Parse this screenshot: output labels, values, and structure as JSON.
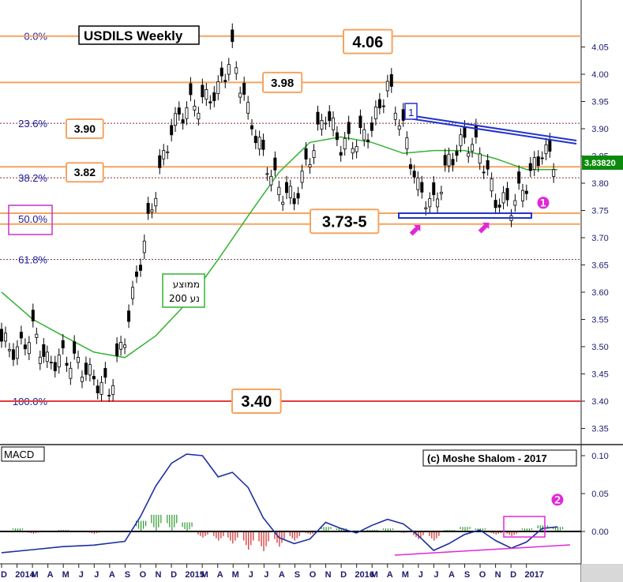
{
  "title": "USDILS Weekly",
  "credit": "(c) Moshe Shalom - 2017",
  "last_price": "3.83820",
  "colors": {
    "fib_line": "#f4a460",
    "fib_dashed": "#8b2c2c",
    "support_line": "#e33b3b",
    "ma200": "#33b233",
    "resistance": "#2233cc",
    "marker": "#e028d8",
    "macd_line": "#1c2fa0",
    "hist_pos": "#2e9a2e",
    "hist_neg": "#d42424",
    "price_tag_bg": "#0c8a0c"
  },
  "chart_data": [
    {
      "type": "candlestick",
      "title": "USDILS Weekly",
      "ylim": [
        3.33,
        4.1
      ],
      "y_ticks": [
        "4.05",
        "4.00",
        "3.95",
        "3.90",
        "3.85",
        "3.80",
        "3.75",
        "3.70",
        "3.65",
        "3.60",
        "3.55",
        "3.50",
        "3.45",
        "3.40",
        "3.35"
      ],
      "x_ticks": [
        "D",
        "2014",
        "M",
        "A",
        "M",
        "J",
        "J",
        "A",
        "S",
        "O",
        "N",
        "D",
        "2015",
        "M",
        "A",
        "M",
        "J",
        "J",
        "A",
        "S",
        "O",
        "N",
        "D",
        "2016",
        "M",
        "A",
        "M",
        "J",
        "J",
        "A",
        "S",
        "O",
        "N",
        "D",
        "2017"
      ],
      "x_range": [
        "2013-12",
        "2017-01"
      ],
      "fib_levels": [
        {
          "label": "0.0%",
          "value": 4.07
        },
        {
          "label": "23.6%",
          "value": 3.91
        },
        {
          "label": "38.2%",
          "value": 3.81
        },
        {
          "label": "50.0%",
          "value": 3.735
        },
        {
          "label": "61.8%",
          "value": 3.66
        },
        {
          "label": "100.0%",
          "value": 3.4
        }
      ],
      "level_lines": [
        4.07,
        3.985,
        3.83,
        3.745,
        3.725,
        3.4
      ],
      "level_labels": [
        {
          "text": "4.06",
          "value": 4.06
        },
        {
          "text": "3.98",
          "value": 3.985
        },
        {
          "text": "3.90",
          "value": 3.9
        },
        {
          "text": "3.82",
          "value": 3.82
        },
        {
          "text": "3.73-5",
          "value": 3.73
        },
        {
          "text": "3.40",
          "value": 3.4
        }
      ],
      "ma_label": [
        "ממוצע",
        "נע 200"
      ],
      "annotations": [
        "1",
        "❶"
      ],
      "close_series": [
        {
          "date": "2013-12-01",
          "value": 3.51
        },
        {
          "date": "2014-01-01",
          "value": 3.49
        },
        {
          "date": "2014-02-01",
          "value": 3.53
        },
        {
          "date": "2014-03-01",
          "value": 3.47
        },
        {
          "date": "2014-04-01",
          "value": 3.48
        },
        {
          "date": "2014-05-01",
          "value": 3.47
        },
        {
          "date": "2014-06-01",
          "value": 3.44
        },
        {
          "date": "2014-07-01",
          "value": 3.42
        },
        {
          "date": "2014-08-01",
          "value": 3.52
        },
        {
          "date": "2014-09-01",
          "value": 3.66
        },
        {
          "date": "2014-10-01",
          "value": 3.79
        },
        {
          "date": "2014-11-01",
          "value": 3.9
        },
        {
          "date": "2014-12-01",
          "value": 3.94
        },
        {
          "date": "2015-01-01",
          "value": 3.95
        },
        {
          "date": "2015-02-01",
          "value": 3.97
        },
        {
          "date": "2015-03-01",
          "value": 4.04
        },
        {
          "date": "2015-04-01",
          "value": 3.93
        },
        {
          "date": "2015-05-01",
          "value": 3.85
        },
        {
          "date": "2015-06-01",
          "value": 3.79
        },
        {
          "date": "2015-07-01",
          "value": 3.77
        },
        {
          "date": "2015-08-01",
          "value": 3.85
        },
        {
          "date": "2015-09-01",
          "value": 3.93
        },
        {
          "date": "2015-10-01",
          "value": 3.87
        },
        {
          "date": "2015-11-01",
          "value": 3.88
        },
        {
          "date": "2015-12-01",
          "value": 3.9
        },
        {
          "date": "2016-01-01",
          "value": 3.98
        },
        {
          "date": "2016-02-01",
          "value": 3.9
        },
        {
          "date": "2016-03-01",
          "value": 3.79
        },
        {
          "date": "2016-04-01",
          "value": 3.76
        },
        {
          "date": "2016-05-01",
          "value": 3.84
        },
        {
          "date": "2016-06-01",
          "value": 3.88
        },
        {
          "date": "2016-07-01",
          "value": 3.86
        },
        {
          "date": "2016-08-01",
          "value": 3.77
        },
        {
          "date": "2016-09-01",
          "value": 3.76
        },
        {
          "date": "2016-10-01",
          "value": 3.8
        },
        {
          "date": "2016-11-01",
          "value": 3.86
        },
        {
          "date": "2016-12-01",
          "value": 3.838
        }
      ],
      "ma200_series": [
        {
          "date": "2013-12-01",
          "value": 3.6
        },
        {
          "date": "2014-02-01",
          "value": 3.55
        },
        {
          "date": "2014-04-01",
          "value": 3.52
        },
        {
          "date": "2014-06-01",
          "value": 3.49
        },
        {
          "date": "2014-08-01",
          "value": 3.48
        },
        {
          "date": "2014-10-01",
          "value": 3.52
        },
        {
          "date": "2014-12-01",
          "value": 3.58
        },
        {
          "date": "2015-02-01",
          "value": 3.66
        },
        {
          "date": "2015-04-01",
          "value": 3.74
        },
        {
          "date": "2015-06-01",
          "value": 3.82
        },
        {
          "date": "2015-08-01",
          "value": 3.875
        },
        {
          "date": "2015-10-01",
          "value": 3.885
        },
        {
          "date": "2015-12-01",
          "value": 3.875
        },
        {
          "date": "2016-02-01",
          "value": 3.855
        },
        {
          "date": "2016-04-01",
          "value": 3.86
        },
        {
          "date": "2016-06-01",
          "value": 3.86
        },
        {
          "date": "2016-08-01",
          "value": 3.845
        },
        {
          "date": "2016-10-01",
          "value": 3.825
        },
        {
          "date": "2016-12-01",
          "value": 3.825
        }
      ]
    },
    {
      "type": "line",
      "title": "MACD",
      "ylim": [
        -0.05,
        0.11
      ],
      "y_ticks": [
        "0.10",
        "0.05",
        "0.00"
      ],
      "annotations": [
        "❷"
      ],
      "macd_series": [
        {
          "date": "2013-12-01",
          "value": -0.028
        },
        {
          "date": "2014-02-01",
          "value": -0.024
        },
        {
          "date": "2014-04-01",
          "value": -0.02
        },
        {
          "date": "2014-06-01",
          "value": -0.018
        },
        {
          "date": "2014-08-01",
          "value": -0.013
        },
        {
          "date": "2014-09-01",
          "value": 0.02
        },
        {
          "date": "2014-10-01",
          "value": 0.06
        },
        {
          "date": "2014-11-01",
          "value": 0.09
        },
        {
          "date": "2014-12-01",
          "value": 0.102
        },
        {
          "date": "2015-01-01",
          "value": 0.1
        },
        {
          "date": "2015-02-01",
          "value": 0.072
        },
        {
          "date": "2015-03-01",
          "value": 0.078
        },
        {
          "date": "2015-04-01",
          "value": 0.058
        },
        {
          "date": "2015-05-01",
          "value": 0.018
        },
        {
          "date": "2015-06-01",
          "value": -0.008
        },
        {
          "date": "2015-07-01",
          "value": -0.016
        },
        {
          "date": "2015-08-01",
          "value": -0.01
        },
        {
          "date": "2015-09-01",
          "value": 0.012
        },
        {
          "date": "2015-10-01",
          "value": 0.004
        },
        {
          "date": "2015-11-01",
          "value": -0.002
        },
        {
          "date": "2015-12-01",
          "value": 0.008
        },
        {
          "date": "2016-01-01",
          "value": 0.016
        },
        {
          "date": "2016-02-01",
          "value": 0.01
        },
        {
          "date": "2016-03-01",
          "value": -0.005
        },
        {
          "date": "2016-04-01",
          "value": -0.025
        },
        {
          "date": "2016-05-01",
          "value": -0.016
        },
        {
          "date": "2016-06-01",
          "value": -0.004
        },
        {
          "date": "2016-07-01",
          "value": 0.002
        },
        {
          "date": "2016-08-01",
          "value": -0.012
        },
        {
          "date": "2016-09-01",
          "value": -0.022
        },
        {
          "date": "2016-10-01",
          "value": -0.014
        },
        {
          "date": "2016-11-01",
          "value": 0.004
        },
        {
          "date": "2016-12-01",
          "value": 0.006
        }
      ],
      "histogram": [
        {
          "date": "2014-01-01",
          "value": 0.004
        },
        {
          "date": "2014-02-01",
          "value": -0.003
        },
        {
          "date": "2014-04-01",
          "value": 0.002
        },
        {
          "date": "2014-06-01",
          "value": -0.003
        },
        {
          "date": "2014-09-01",
          "value": 0.014
        },
        {
          "date": "2014-10-01",
          "value": 0.022
        },
        {
          "date": "2014-11-01",
          "value": 0.022
        },
        {
          "date": "2014-12-01",
          "value": 0.012
        },
        {
          "date": "2015-01-01",
          "value": -0.008
        },
        {
          "date": "2015-02-01",
          "value": -0.012
        },
        {
          "date": "2015-03-01",
          "value": -0.016
        },
        {
          "date": "2015-04-01",
          "value": -0.024
        },
        {
          "date": "2015-05-01",
          "value": -0.026
        },
        {
          "date": "2015-06-01",
          "value": -0.02
        },
        {
          "date": "2015-07-01",
          "value": -0.012
        },
        {
          "date": "2015-08-01",
          "value": -0.004
        },
        {
          "date": "2015-09-01",
          "value": 0.006
        },
        {
          "date": "2015-10-01",
          "value": 0.004
        },
        {
          "date": "2015-12-01",
          "value": 0.002
        },
        {
          "date": "2016-01-01",
          "value": 0.004
        },
        {
          "date": "2016-02-01",
          "value": -0.002
        },
        {
          "date": "2016-03-01",
          "value": -0.01
        },
        {
          "date": "2016-04-01",
          "value": -0.012
        },
        {
          "date": "2016-05-01",
          "value": 0.002
        },
        {
          "date": "2016-06-01",
          "value": 0.006
        },
        {
          "date": "2016-07-01",
          "value": 0.004
        },
        {
          "date": "2016-08-01",
          "value": -0.004
        },
        {
          "date": "2016-09-01",
          "value": -0.006
        },
        {
          "date": "2016-10-01",
          "value": 0.004
        },
        {
          "date": "2016-11-01",
          "value": 0.008
        },
        {
          "date": "2016-12-01",
          "value": 0.006
        }
      ]
    }
  ]
}
